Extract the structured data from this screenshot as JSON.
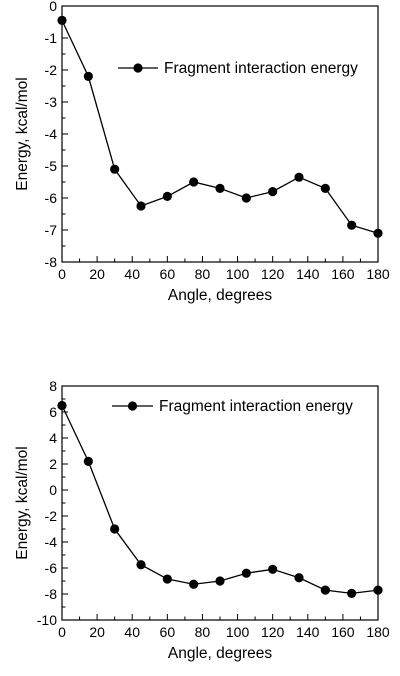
{
  "chart_data": [
    {
      "type": "line",
      "xlabel": "Angle, degrees",
      "ylabel": "Energy, kcal/mol",
      "xlim": [
        0,
        180
      ],
      "ylim": [
        -8,
        0
      ],
      "xticks": [
        0,
        20,
        40,
        60,
        80,
        100,
        120,
        140,
        160,
        180
      ],
      "yticks": [
        0,
        -1,
        -2,
        -3,
        -4,
        -5,
        -6,
        -7,
        -8
      ],
      "xtick_labels": [
        "0",
        "20",
        "40",
        "60",
        "80",
        "100",
        "120",
        "140",
        "160",
        "180"
      ],
      "ytick_labels": [
        "0",
        "-1",
        "-2",
        "-3",
        "-4",
        "-5",
        "-6",
        "-7",
        "-8"
      ],
      "grid": false,
      "legend_position": "top-right",
      "marker": "filled-circle",
      "series": [
        {
          "name": "Fragment interaction energy",
          "color": "#000000",
          "x": [
            0,
            15,
            30,
            45,
            60,
            75,
            90,
            105,
            120,
            135,
            150,
            165,
            180
          ],
          "y": [
            -0.45,
            -2.2,
            -5.1,
            -6.25,
            -5.95,
            -5.5,
            -5.7,
            -6.0,
            -5.8,
            -5.35,
            -5.7,
            -6.85,
            -7.1
          ]
        }
      ]
    },
    {
      "type": "line",
      "xlabel": "Angle, degrees",
      "ylabel": "Energy, kcal/mol",
      "xlim": [
        0,
        180
      ],
      "ylim": [
        -10,
        8
      ],
      "xticks": [
        0,
        20,
        40,
        60,
        80,
        100,
        120,
        140,
        160,
        180
      ],
      "yticks": [
        8,
        6,
        4,
        2,
        0,
        -2,
        -4,
        -6,
        -8,
        -10
      ],
      "xtick_labels": [
        "0",
        "20",
        "40",
        "60",
        "80",
        "100",
        "120",
        "140",
        "160",
        "180"
      ],
      "ytick_labels": [
        "8",
        "6",
        "4",
        "2",
        "0",
        "-2",
        "-4",
        "-6",
        "-8",
        "-10"
      ],
      "grid": false,
      "legend_position": "top-right",
      "marker": "filled-circle",
      "series": [
        {
          "name": "Fragment interaction energy",
          "color": "#000000",
          "x": [
            0,
            15,
            30,
            45,
            60,
            75,
            90,
            105,
            120,
            135,
            150,
            165,
            180
          ],
          "y": [
            6.5,
            2.2,
            -3.0,
            -5.75,
            -6.85,
            -7.25,
            -7.0,
            -6.4,
            -6.1,
            -6.75,
            -7.7,
            -7.95,
            -7.7
          ]
        }
      ]
    }
  ]
}
